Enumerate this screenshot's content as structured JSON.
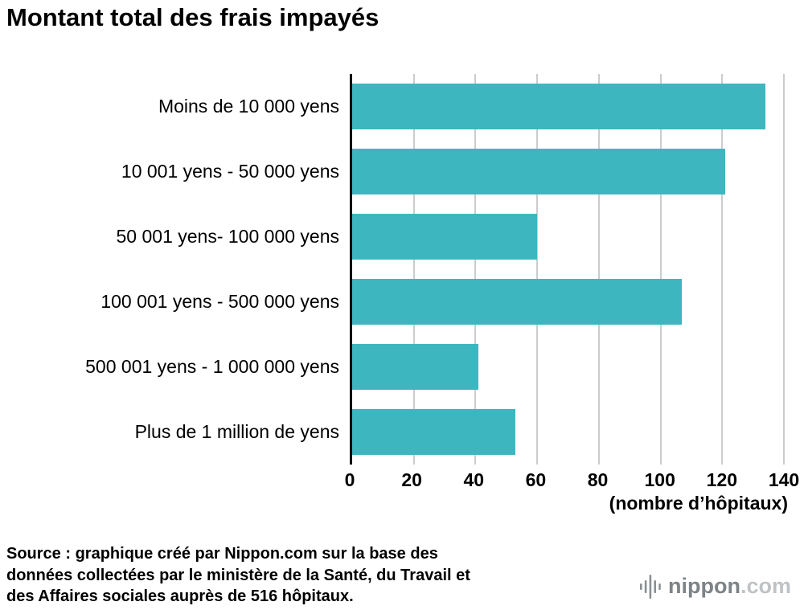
{
  "chart_data": {
    "type": "bar",
    "orientation": "horizontal",
    "title": "Montant total des frais impayés",
    "categories": [
      "Moins de 10 000 yens",
      "10 001 yens - 50 000 yens",
      "50 001 yens- 100 000 yens",
      "100 001 yens - 500 000 yens",
      "500 001 yens - 1 000 000 yens",
      "Plus de 1 million de yens"
    ],
    "values": [
      134,
      121,
      60,
      107,
      41,
      53
    ],
    "xlabel": "(nombre d’hôpitaux)",
    "xlim": [
      0,
      140
    ],
    "xticks": [
      0,
      20,
      40,
      60,
      80,
      100,
      120,
      140
    ],
    "grid": true,
    "legend": "none",
    "bar_color": "#3eb6c0",
    "gridline_color": "#cccccc",
    "axis_color": "#000000"
  },
  "source": {
    "lines": [
      "Source : graphique créé par Nippon.com sur la base des",
      "données collectées par le ministère de la Santé, du Travail et",
      "des Affaires sociales auprès de 516 hôpitaux."
    ]
  },
  "logo": {
    "name": "nippon",
    "domain": ".com"
  }
}
